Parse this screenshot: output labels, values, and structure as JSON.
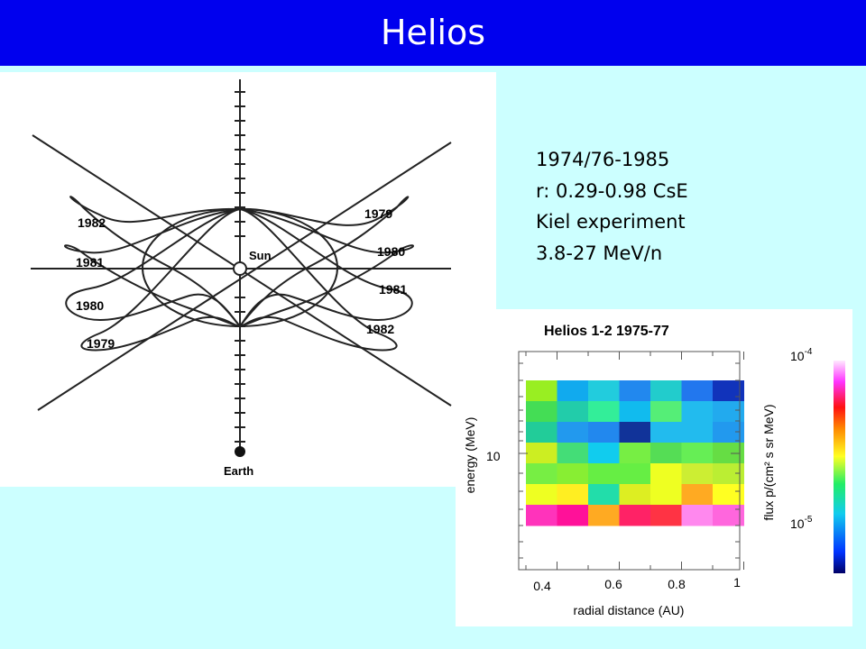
{
  "slide": {
    "title": "Helios",
    "colors": {
      "title_bar": "#0000ee",
      "background": "#ccffff"
    }
  },
  "orbit_diagram": {
    "center_label": "Sun",
    "earth_label": "Earth",
    "left_loop_labels": [
      "1982",
      "1981",
      "1980",
      "1979"
    ],
    "right_loop_labels": [
      "1979",
      "1980",
      "1981",
      "1982"
    ]
  },
  "info": {
    "lines": [
      "1974/76-1985",
      "r:  0.29-0.98 CsE",
      "Kiel experiment",
      "3.8-27 MeV/n"
    ]
  },
  "chart_data": {
    "type": "heatmap",
    "title": "Helios 1-2    1975-77",
    "xlabel": "radial distance (AU)",
    "ylabel": "energy  (MeV)",
    "colorbar_label": "flux  p/(cm² s sr MeV)",
    "x_ticks": [
      "0.4",
      "0.6",
      "0.8",
      "1"
    ],
    "y_ticks": [
      "10"
    ],
    "colorbar_ticks": [
      {
        "base": "10",
        "exp": "-4"
      },
      {
        "base": "10",
        "exp": "-5"
      }
    ],
    "xlim": [
      0.3,
      1.0
    ],
    "x_bins": [
      0.3,
      0.4,
      0.5,
      0.6,
      0.7,
      0.8,
      0.9,
      1.0
    ],
    "cells": [
      [
        "#99ee22",
        "#11aaee",
        "#22ccdd",
        "#2288ee",
        "#22cccc",
        "#2277ee",
        "#1133bb"
      ],
      [
        "#44dd55",
        "#22ccaa",
        "#33ee99",
        "#11bbee",
        "#55ee77",
        "#22bbee",
        "#22aaee"
      ],
      [
        "#22cc99",
        "#2299ee",
        "#2288ee",
        "#113399",
        "#22bbee",
        "#22bbee",
        "#2299ee"
      ],
      [
        "#ccee22",
        "#44dd77",
        "#11ccee",
        "#77ee44",
        "#55dd55",
        "#66ee55",
        "#66dd44"
      ],
      [
        "#77ee44",
        "#88ee33",
        "#66ee44",
        "#66ee44",
        "#eeff22",
        "#ccee33",
        "#bbee33"
      ],
      [
        "#eeff22",
        "#ffee22",
        "#22ddaa",
        "#ddee22",
        "#eeff22",
        "#ffaa22",
        "#ffff22"
      ],
      [
        "#ff33bb",
        "#ff1199",
        "#ffaa22",
        "#ff2266",
        "#ff3344",
        "#ff88ee",
        "#ff66dd"
      ]
    ]
  }
}
